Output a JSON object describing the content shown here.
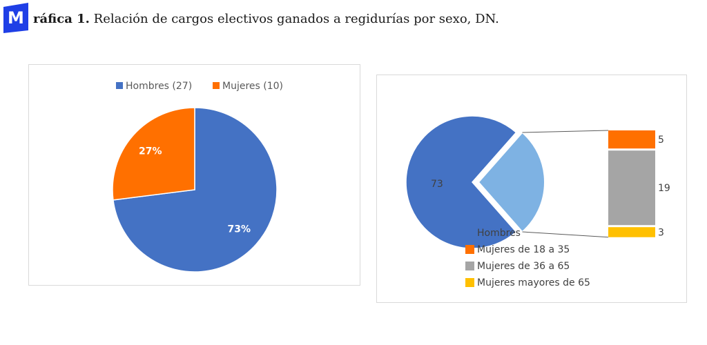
{
  "header": {
    "logo_letter": "M",
    "title_bold": "ráfica 1.",
    "title_rest": " Relación de cargos electivos ganados a regidurías por sexo, DN."
  },
  "colors": {
    "hombres": "#4472c4",
    "mujeres": "#ff7000",
    "mujeres_lightblue": "#7eb2e3",
    "mujeres_18_35": "#ff7000",
    "mujeres_36_65": "#a5a5a5",
    "mujeres_65_plus": "#ffc000",
    "logo_bg": "#1f3fe6"
  },
  "chart_data": [
    {
      "type": "pie",
      "title": "",
      "legend_position": "top",
      "legend": [
        "Hombres (27)",
        "Mujeres (10)"
      ],
      "slices": [
        {
          "name": "Hombres (27)",
          "value": 73,
          "label": "73%",
          "color": "#4472c4"
        },
        {
          "name": "Mujeres (10)",
          "value": 27,
          "label": "27%",
          "color": "#ff7000"
        }
      ]
    },
    {
      "type": "bar",
      "subtype": "bar-of-pie",
      "title": "",
      "legend_position": "bottom",
      "legend": [
        "Hombres",
        "Mujeres de 18 a 35",
        "Mujeres de 36 a 65",
        "Mujeres mayores de 65"
      ],
      "pie": [
        {
          "name": "Hombres",
          "value": 73,
          "label": "73",
          "color": "#4472c4"
        },
        {
          "name": "Mujeres",
          "value": 27,
          "label": "",
          "color": "#7eb2e3"
        }
      ],
      "bar": [
        {
          "name": "Mujeres de 18 a 35",
          "value": 5,
          "label": "5",
          "color": "#ff7000"
        },
        {
          "name": "Mujeres de 36 a 65",
          "value": 19,
          "label": "19",
          "color": "#a5a5a5"
        },
        {
          "name": "Mujeres mayores de 65",
          "value": 3,
          "label": "3",
          "color": "#ffc000"
        }
      ]
    }
  ]
}
